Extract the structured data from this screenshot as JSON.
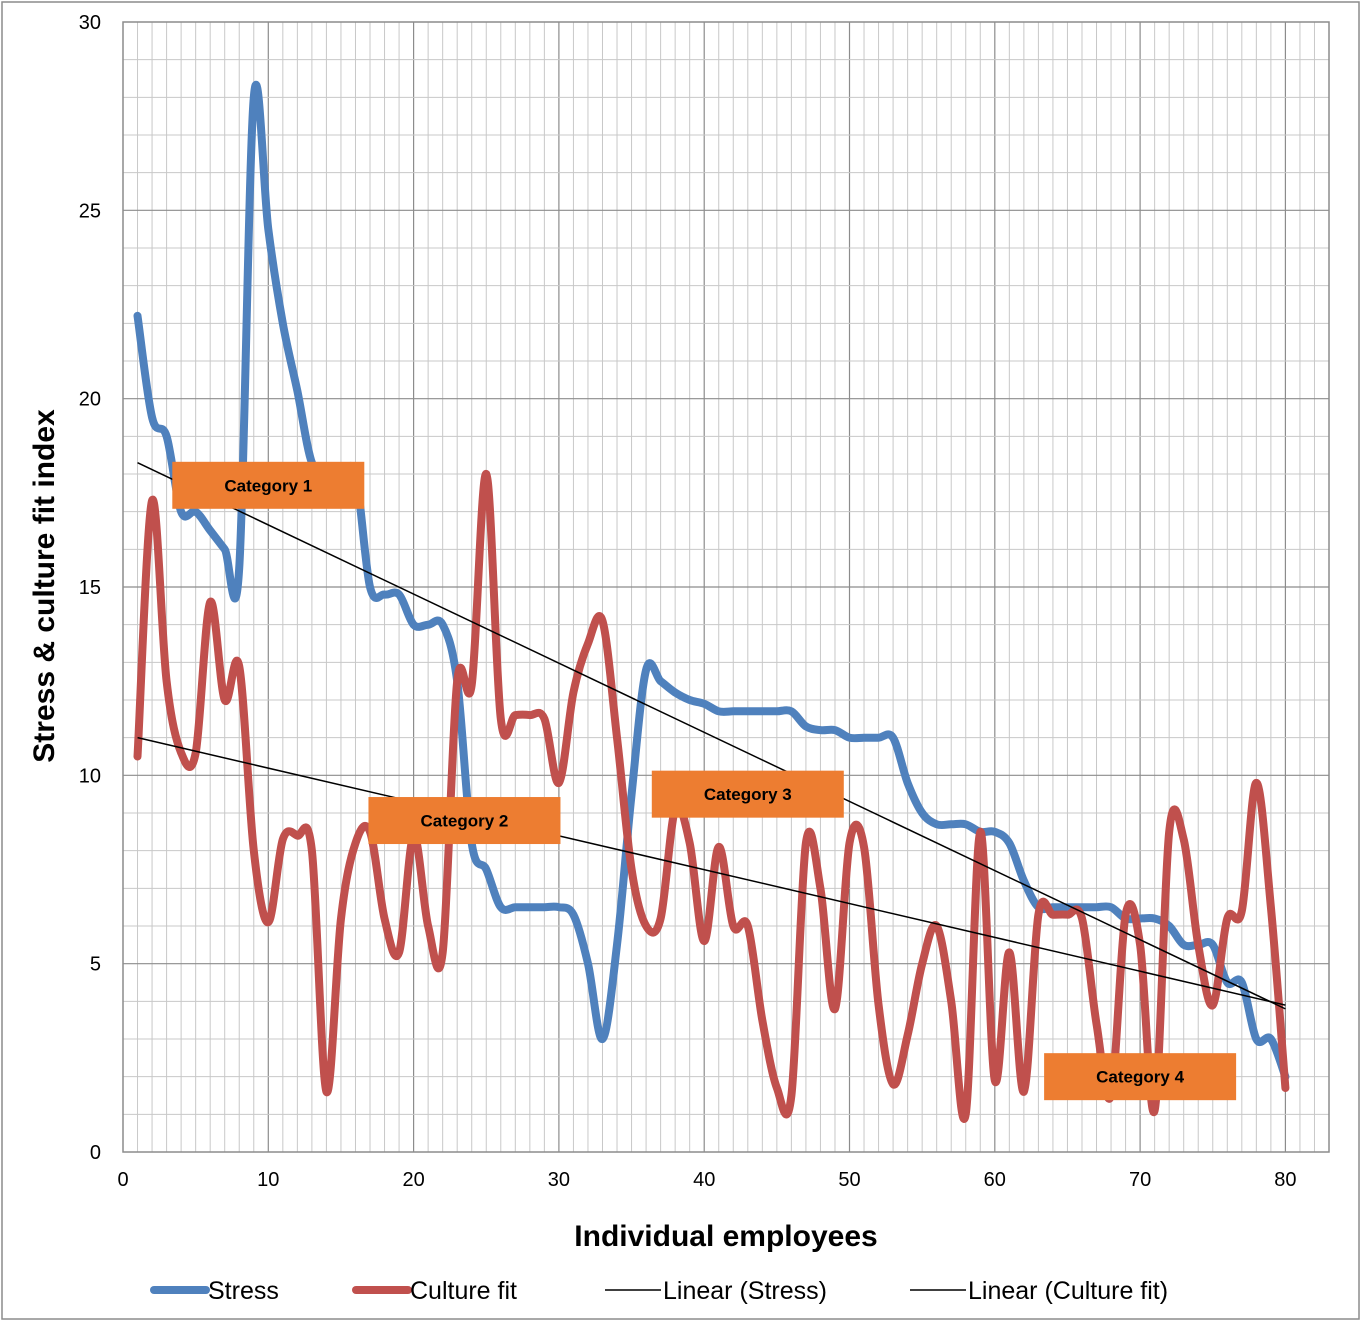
{
  "chart_data": {
    "type": "line",
    "xlabel": "Individual employees",
    "ylabel": "Stress & culture fit index",
    "xlim": [
      0,
      83
    ],
    "ylim": [
      0,
      30
    ],
    "x_ticks": [
      0,
      10,
      20,
      30,
      40,
      50,
      60,
      70,
      80
    ],
    "y_ticks": [
      0,
      5,
      10,
      15,
      20,
      25,
      30
    ],
    "grid": true,
    "legend_position": "bottom",
    "series": [
      {
        "name": "Stress",
        "color": "#4f81bd",
        "x": [
          1,
          2,
          3,
          4,
          5,
          6,
          7,
          8,
          9,
          10,
          11,
          12,
          13,
          14,
          15,
          16,
          17,
          18,
          19,
          20,
          21,
          22,
          23,
          24,
          25,
          26,
          27,
          28,
          29,
          30,
          31,
          32,
          33,
          34,
          35,
          36,
          37,
          38,
          39,
          40,
          41,
          42,
          43,
          44,
          45,
          46,
          47,
          48,
          49,
          50,
          51,
          52,
          53,
          54,
          55,
          56,
          57,
          58,
          59,
          60,
          61,
          62,
          63,
          64,
          65,
          66,
          67,
          68,
          69,
          70,
          71,
          72,
          73,
          74,
          75,
          76,
          77,
          78,
          79,
          80
        ],
        "values": [
          22.2,
          19.5,
          19.0,
          17.0,
          17.0,
          16.5,
          16.0,
          15.5,
          28.0,
          24.5,
          22.0,
          20.2,
          18.3,
          18.2,
          18.0,
          18.0,
          15.0,
          14.8,
          14.8,
          14.0,
          14.0,
          14.0,
          12.5,
          8.2,
          7.5,
          6.5,
          6.5,
          6.5,
          6.5,
          6.5,
          6.3,
          5.0,
          3.0,
          5.5,
          9.5,
          12.8,
          12.5,
          12.2,
          12.0,
          11.9,
          11.7,
          11.7,
          11.7,
          11.7,
          11.7,
          11.7,
          11.3,
          11.2,
          11.2,
          11.0,
          11.0,
          11.0,
          11.0,
          9.8,
          9.0,
          8.7,
          8.7,
          8.7,
          8.5,
          8.5,
          8.2,
          7.2,
          6.5,
          6.5,
          6.5,
          6.5,
          6.5,
          6.5,
          6.2,
          6.2,
          6.2,
          6.0,
          5.5,
          5.5,
          5.5,
          4.5,
          4.5,
          3.0,
          3.0,
          2.0
        ]
      },
      {
        "name": "Culture fit",
        "color": "#c0504d",
        "x": [
          1,
          2,
          3,
          4,
          5,
          6,
          7,
          8,
          9,
          10,
          11,
          12,
          13,
          14,
          15,
          16,
          17,
          18,
          19,
          20,
          21,
          22,
          23,
          24,
          25,
          26,
          27,
          28,
          29,
          30,
          31,
          32,
          33,
          34,
          35,
          36,
          37,
          38,
          39,
          40,
          41,
          42,
          43,
          44,
          45,
          46,
          47,
          48,
          49,
          50,
          51,
          52,
          53,
          54,
          55,
          56,
          57,
          58,
          59,
          60,
          61,
          62,
          63,
          64,
          65,
          66,
          67,
          68,
          69,
          70,
          71,
          72,
          73,
          74,
          75,
          76,
          77,
          78,
          79,
          80
        ],
        "values": [
          10.5,
          17.3,
          12.5,
          10.6,
          10.6,
          14.6,
          12.0,
          12.9,
          8.0,
          6.1,
          8.3,
          8.4,
          8.0,
          1.6,
          6.2,
          8.2,
          8.5,
          6.2,
          5.3,
          8.4,
          6.0,
          5.3,
          12.5,
          12.4,
          18.0,
          11.5,
          11.6,
          11.6,
          11.5,
          9.8,
          12.2,
          13.5,
          14.1,
          11.0,
          7.5,
          6.0,
          6.2,
          9.1,
          8.2,
          5.6,
          8.1,
          6.0,
          6.0,
          3.5,
          1.7,
          1.5,
          8.2,
          7.0,
          3.8,
          8.2,
          8.1,
          3.9,
          1.8,
          3.1,
          5.0,
          6.0,
          4.0,
          1.0,
          8.5,
          1.9,
          5.3,
          1.6,
          6.3,
          6.3,
          6.3,
          6.2,
          3.4,
          1.5,
          6.3,
          5.5,
          1.1,
          8.5,
          8.3,
          5.5,
          3.9,
          6.2,
          6.4,
          9.8,
          6.5,
          1.7
        ]
      },
      {
        "name": "Linear (Stress)",
        "color": "#000000",
        "trendline": true,
        "x": [
          1,
          80
        ],
        "values": [
          18.3,
          3.8
        ]
      },
      {
        "name": "Linear (Culture fit)",
        "color": "#000000",
        "trendline": true,
        "x": [
          1,
          80
        ],
        "values": [
          11.0,
          3.9
        ]
      }
    ],
    "annotations": [
      {
        "text": "Category 1",
        "x": 10,
        "y": 17.7
      },
      {
        "text": "Category 2",
        "x": 23.5,
        "y": 8.8
      },
      {
        "text": "Category 3",
        "x": 43,
        "y": 9.5
      },
      {
        "text": "Category 4",
        "x": 70,
        "y": 2.0
      }
    ],
    "annotation_color": "#ed7d31"
  }
}
